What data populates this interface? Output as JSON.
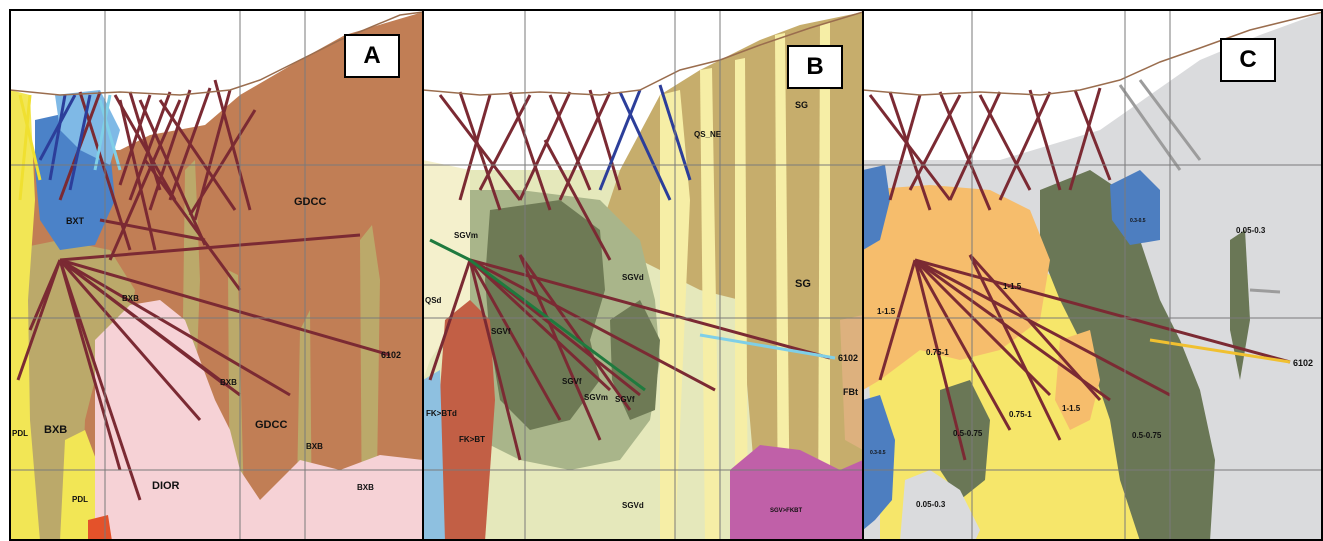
{
  "panels": [
    {
      "letter": "A",
      "labels": [
        "GDCC",
        "BXT",
        "BXB",
        "BXB",
        "GDCC",
        "BXB",
        "PDL",
        "BXB",
        "PDL",
        "DIOR",
        "BXB",
        "6102"
      ]
    },
    {
      "letter": "B",
      "labels": [
        "SG",
        "QS_NE",
        "SGVm",
        "SG",
        "SGVd",
        "QSd",
        "SGVf",
        "SGVf",
        "SGVm",
        "SGVf",
        "FK>BTd",
        "FK>BT",
        "6102",
        "FBt",
        "SGVd",
        "SGV>FKBT"
      ]
    },
    {
      "letter": "C",
      "labels": [
        "0.05-0.3",
        "0.3-0.5",
        "1-1.5",
        "1-1.5",
        "0.75-1",
        "0.75-1",
        "1-1.5",
        "0.5-0.75",
        "0.5-0.75",
        "0.3-0.5",
        "0.05-0.3",
        "6102"
      ]
    }
  ],
  "colors": {
    "gdcc": "#c17e55",
    "bxb": "#bba96a",
    "pdl": "#f2e655",
    "dior": "#f6d2d6",
    "bxt": "#4b82c8",
    "sg": "#c6ad6c",
    "sgvd": "#e5e8bb",
    "sgvm": "#a9b58a",
    "sgvf": "#6e7a55",
    "fkbt": "#c25f45",
    "fkbtd": "#8ec0e0",
    "sgvfkbt": "#c060a8",
    "fbt": "#ddb17e",
    "grade_low": "#dadbdd",
    "grade_03": "#4d7ec0",
    "grade_05": "#6a7756",
    "grade_075": "#f6e66a",
    "grade_1": "#f6bd6c",
    "drill_dark": "#7b2a33"
  }
}
